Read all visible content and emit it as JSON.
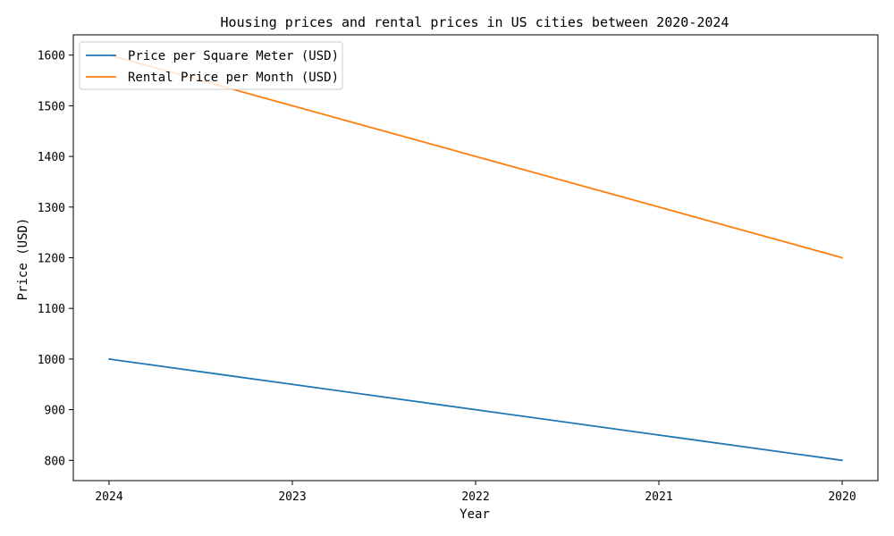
{
  "chart_data": {
    "type": "line",
    "title": "Housing prices and rental prices in US cities between 2020-2024",
    "xlabel": "Year",
    "ylabel": "Price (USD)",
    "categories": [
      "2024",
      "2023",
      "2022",
      "2021",
      "2020"
    ],
    "yticks": [
      800,
      900,
      1000,
      1100,
      1200,
      1300,
      1400,
      1500,
      1600
    ],
    "ylim": [
      760,
      1640
    ],
    "grid": false,
    "legend_position": "top-left",
    "series": [
      {
        "name": "Price per Square Meter (USD)",
        "color": "#1f77b4",
        "values": [
          1000,
          950,
          900,
          850,
          800
        ]
      },
      {
        "name": "Rental Price per Month (USD)",
        "color": "#ff7f0e",
        "values": [
          1600,
          1500,
          1400,
          1300,
          1200
        ]
      }
    ]
  }
}
